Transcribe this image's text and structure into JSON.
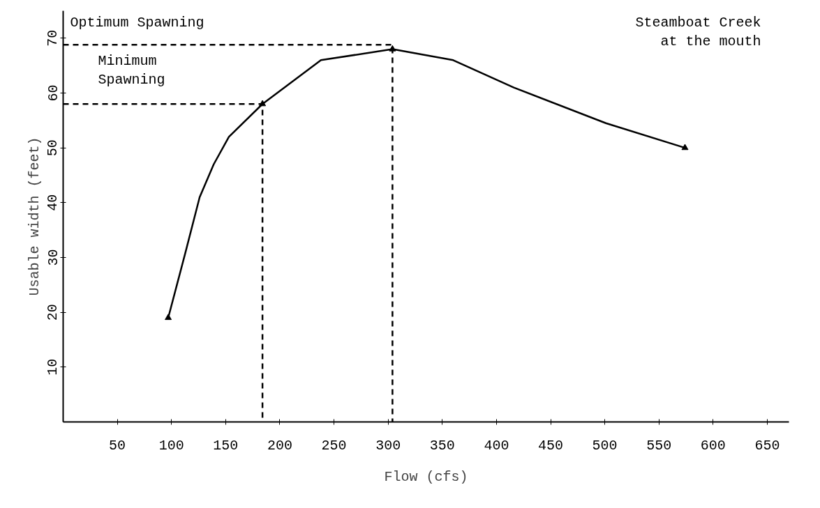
{
  "chart_data": {
    "type": "line",
    "xlabel": "Flow (cfs)",
    "ylabel": "Usable width (feet)",
    "xlim": [
      0,
      670
    ],
    "ylim": [
      0,
      75
    ],
    "xticks": [
      50,
      100,
      150,
      200,
      250,
      300,
      350,
      400,
      450,
      500,
      550,
      600,
      650
    ],
    "yticks": [
      10,
      20,
      30,
      40,
      50,
      60,
      70
    ],
    "grid": false,
    "series": [
      {
        "color": "#000000",
        "x": [
          97,
          113,
          126,
          139,
          153,
          184,
          238,
          304,
          360,
          416,
          501,
          574
        ],
        "values": [
          19,
          31,
          41,
          47,
          52,
          58,
          66,
          68,
          66,
          61,
          54.5,
          50
        ],
        "line_style": "solid",
        "marker": "none"
      },
      {
        "type": "scatter",
        "color": "#000000",
        "x": [
          97,
          184,
          304,
          574
        ],
        "values": [
          19,
          58,
          68,
          50
        ],
        "marker": "triangle"
      },
      {
        "color": "#000000",
        "x": [
          0,
          184,
          184
        ],
        "values": [
          58,
          58,
          0
        ],
        "line_style": "dashed",
        "marker": "none"
      },
      {
        "color": "#000000",
        "x": [
          0,
          304,
          304
        ],
        "values": [
          68.8,
          68.8,
          0
        ],
        "line_style": "dashed",
        "marker": "none"
      }
    ],
    "annotations": [
      "Optimum Spawning",
      "Minimum\nSpawning",
      "Steamboat Creek\nat the mouth"
    ]
  }
}
